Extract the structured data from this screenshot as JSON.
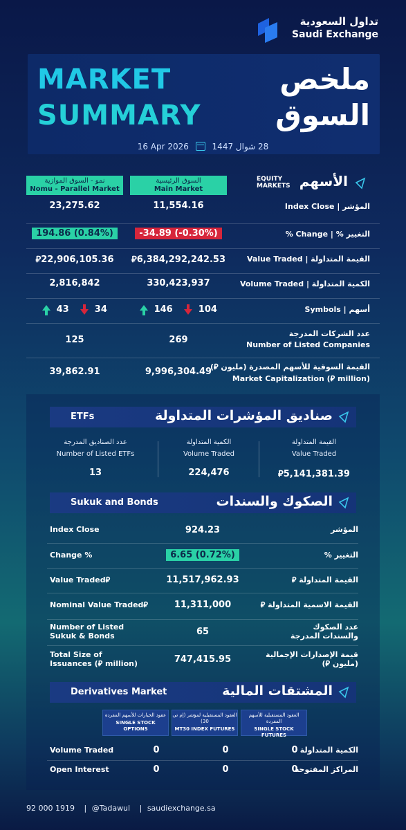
{
  "logo": {
    "ar": "تداول السعودية",
    "en": "Saudi Exchange"
  },
  "title": {
    "en_line1": "MARKET",
    "en_line2": "SUMMARY",
    "ar_line1": "ملخص",
    "ar_line2": "السوق"
  },
  "date": {
    "gregorian": "16 Apr 2026",
    "hijri": "28 شوال 1447"
  },
  "equity": {
    "header_en": "EQUITY MARKETS",
    "header_ar": "الأسهم",
    "nomu_head_ar": "نمو - السوق الموازية",
    "nomu_head_en": "Nomu - Parallel Market",
    "main_head_ar": "السوق الرئيسية",
    "main_head_en": "Main Market",
    "rows": [
      {
        "label": "المؤشر | Index Close",
        "nomu": "23,275.62",
        "main": "11,554.16"
      },
      {
        "label": "التغيير % | Change %",
        "nomu": "194.86 (0.84%)",
        "main": "-34.89 (-0.30%)"
      },
      {
        "label": "القيمة المتداولة | Value Traded",
        "nomu": "⃁22,906,105.36",
        "main": "⃁6,384,292,242.53"
      },
      {
        "label": "الكمية المتداولة | Volume Traded",
        "nomu": "2,816,842",
        "main": "330,423,937"
      },
      {
        "label": "أسهم | Symbols"
      },
      {
        "label_ar": "عدد الشركات المدرجة",
        "label_en": "Number of Listed Companies",
        "nomu": "125",
        "main": "269"
      },
      {
        "label_ar": "القيمة السوقية للأسهم المصدرة (مليون ⃁)",
        "label_en": "Market Capitalization (⃁ million)",
        "nomu": "39,862.91",
        "main": "9,996,304.49"
      }
    ],
    "symbols": {
      "nomu_up": "43",
      "nomu_down": "34",
      "main_up": "146",
      "main_down": "104"
    }
  },
  "etfs": {
    "header_en": "ETFs",
    "header_ar": "صناديق المؤشرات المتداولة",
    "cols": [
      {
        "ar": "عدد الصناديق المدرجة",
        "en": "Number of Listed ETFs",
        "val": "13"
      },
      {
        "ar": "الكمية المتداولة",
        "en": "Volume Traded",
        "val": "224,476"
      },
      {
        "ar": "القيمة المتداولة",
        "en": "Value Traded",
        "val": "⃁5,141,381.39"
      }
    ]
  },
  "sukuk": {
    "header_en": "Sukuk and Bonds",
    "header_ar": "الصكوك والسندات",
    "rows": [
      {
        "en": "Index Close",
        "val": "924.23",
        "ar": "المؤشر"
      },
      {
        "en": "Change %",
        "val": "6.65 (0.72%)",
        "ar": "التغيير %"
      },
      {
        "en": "Value Traded⃁",
        "val": "11,517,962.93",
        "ar": "القيمة المتداولة ⃁"
      },
      {
        "en": "Nominal Value Traded⃁",
        "val": "11,311,000",
        "ar": "القيمة الاسمية المتداولة ⃁"
      },
      {
        "en": "Number of Listed Sukuk & Bonds",
        "val": "65",
        "ar": "عدد الصكوك والسندات المدرجة"
      },
      {
        "en": "Total Size of Issuances (⃁ million)",
        "val": "747,415.95",
        "ar": "قيمة الإصدارات الإجمالية (مليون ⃁)"
      }
    ]
  },
  "derivatives": {
    "header_en": "Derivatives Market",
    "header_ar": "المشتقات المالية",
    "chips": [
      {
        "ar": "عقود الخيارات للأسهم المفردة",
        "en": "SINGLE STOCK OPTIONS"
      },
      {
        "ar": "العقود المستقبلية لمؤشر (إم تي 30)",
        "en": "MT30 INDEX FUTURES"
      },
      {
        "ar": "العقود المستقبلية للأسهم المفردة",
        "en": "SINGLE STOCK FUTURES"
      }
    ],
    "rows": [
      {
        "en": "Volume Traded",
        "ar": "الكمية المتداولة",
        "v1": "0",
        "v2": "0",
        "v3": "0"
      },
      {
        "en": "Open Interest",
        "ar": "المراكز المفتوحة",
        "v1": "0",
        "v2": "0",
        "v3": "0"
      }
    ]
  },
  "footer": {
    "phone": "92 000 1919",
    "handle": "@Tadawul",
    "site": "saudiexchange.sa"
  },
  "colors": {
    "accent": "#2ad1a6",
    "negative": "#d6263b",
    "title_cyan": "#21c9e6",
    "band": "#1a3a82"
  }
}
